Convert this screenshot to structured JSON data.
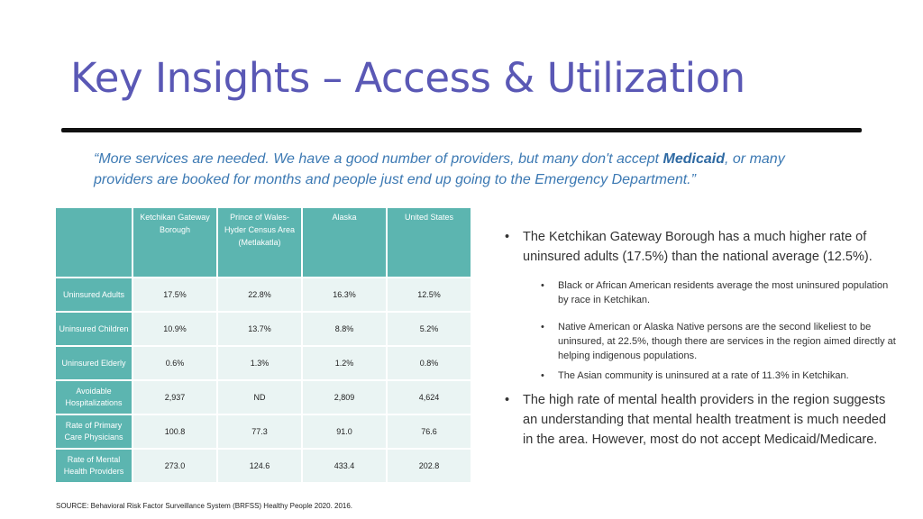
{
  "title": "Key Insights – Access & Utilization",
  "quote": {
    "before": "“More services are needed. We have a good number of providers, but many don't accept ",
    "emphasis": "Medicaid",
    "after": ", or many providers are booked for months and people just end up going to the Emergency Department.”"
  },
  "table": {
    "headers": [
      "",
      "Ketchikan Gateway Borough",
      "Prince of Wales-Hyder Census Area (Metlakatla)",
      "Alaska",
      "United States"
    ],
    "rows": [
      {
        "label": "Uninsured Adults",
        "values": [
          "17.5%",
          "22.8%",
          "16.3%",
          "12.5%"
        ]
      },
      {
        "label": "Uninsured Children",
        "values": [
          "10.9%",
          "13.7%",
          "8.8%",
          "5.2%"
        ]
      },
      {
        "label": "Uninsured Elderly",
        "values": [
          "0.6%",
          "1.3%",
          "1.2%",
          "0.8%"
        ]
      },
      {
        "label": "Avoidable Hospitalizations",
        "values": [
          "2,937",
          "ND",
          "2,809",
          "4,624"
        ]
      },
      {
        "label": "Rate of Primary Care Physicians",
        "values": [
          "100.8",
          "77.3",
          "91.0",
          "76.6"
        ]
      },
      {
        "label": "Rate of Mental Health Providers",
        "values": [
          "273.0",
          "124.6",
          "433.4",
          "202.8"
        ]
      }
    ]
  },
  "source": "SOURCE: Behavioral Risk Factor Surveillance System (BRFSS) Healthy People 2020. 2016.",
  "bullets": {
    "main1": "The Ketchikan Gateway Borough has a much higher rate of uninsured adults (17.5%) than the national average (12.5%).",
    "sub1": "Black or African American residents average the most uninsured population by race in Ketchikan.",
    "sub2": "Native American or Alaska Native persons are the second likeliest to be uninsured, at 22.5%, though there are services in the region aimed directly at helping indigenous populations.",
    "sub3": "The Asian community is uninsured at a rate of 11.3% in Ketchikan.",
    "main2": "The high rate of mental health providers in the region suggests an understanding that mental health treatment is much needed in the area. However, most do not accept Medicaid/Medicare."
  }
}
